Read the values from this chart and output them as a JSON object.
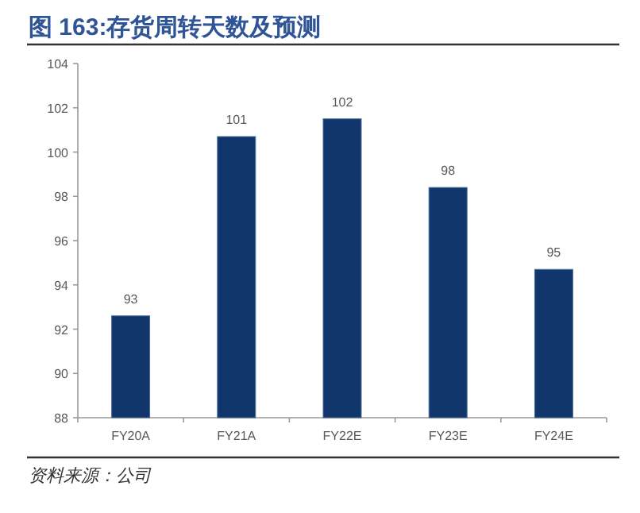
{
  "chart_data": {
    "type": "bar",
    "title": "图 163:存货周转天数及预测",
    "categories": [
      "FY20A",
      "FY21A",
      "FY22E",
      "FY23E",
      "FY24E"
    ],
    "values": [
      92.6,
      100.7,
      101.5,
      98.4,
      94.7
    ],
    "value_labels": [
      "93",
      "101",
      "102",
      "98",
      "95"
    ],
    "color": "#10366b",
    "ylim": [
      88,
      104
    ],
    "yticks": [
      88,
      90,
      92,
      94,
      96,
      98,
      100,
      102,
      104
    ],
    "annotations": [
      "资料来源：公司"
    ]
  }
}
